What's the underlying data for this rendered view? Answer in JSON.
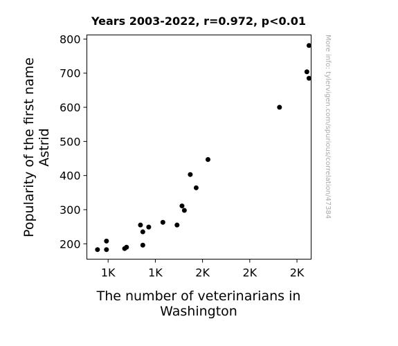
{
  "chart_data": {
    "type": "scatter",
    "title": "Years 2003-2022, r=0.972, p<0.01",
    "xlabel_lines": [
      "The number of veterinarians in",
      "Washington"
    ],
    "ylabel_lines": [
      "Popularity of the first name",
      "Astrid"
    ],
    "watermark": "More info: tylervigen.com/spurious/correlation/47384",
    "xlim": [
      1060,
      2010
    ],
    "ylim": [
      155,
      812
    ],
    "xticks": [
      {
        "value": 1150,
        "label": "1K"
      },
      {
        "value": 1350,
        "label": "1K"
      },
      {
        "value": 1550,
        "label": "2K"
      },
      {
        "value": 1750,
        "label": "2K"
      },
      {
        "value": 1950,
        "label": "2K"
      }
    ],
    "yticks": [
      {
        "value": 200,
        "label": "200"
      },
      {
        "value": 300,
        "label": "300"
      },
      {
        "value": 400,
        "label": "400"
      },
      {
        "value": 500,
        "label": "500"
      },
      {
        "value": 600,
        "label": "600"
      },
      {
        "value": 700,
        "label": "700"
      },
      {
        "value": 800,
        "label": "800"
      }
    ],
    "points": [
      {
        "x": 1105,
        "y": 183
      },
      {
        "x": 1143,
        "y": 183
      },
      {
        "x": 1143,
        "y": 208
      },
      {
        "x": 1220,
        "y": 186
      },
      {
        "x": 1228,
        "y": 190
      },
      {
        "x": 1287,
        "y": 255
      },
      {
        "x": 1297,
        "y": 235
      },
      {
        "x": 1297,
        "y": 196
      },
      {
        "x": 1322,
        "y": 249
      },
      {
        "x": 1382,
        "y": 263
      },
      {
        "x": 1442,
        "y": 255
      },
      {
        "x": 1463,
        "y": 311
      },
      {
        "x": 1473,
        "y": 298
      },
      {
        "x": 1498,
        "y": 403
      },
      {
        "x": 1523,
        "y": 364
      },
      {
        "x": 1573,
        "y": 447
      },
      {
        "x": 1876,
        "y": 600
      },
      {
        "x": 1992,
        "y": 704
      },
      {
        "x": 2001,
        "y": 685
      },
      {
        "x": 2001,
        "y": 781
      }
    ],
    "marker_color": "#000000",
    "grid": false
  }
}
